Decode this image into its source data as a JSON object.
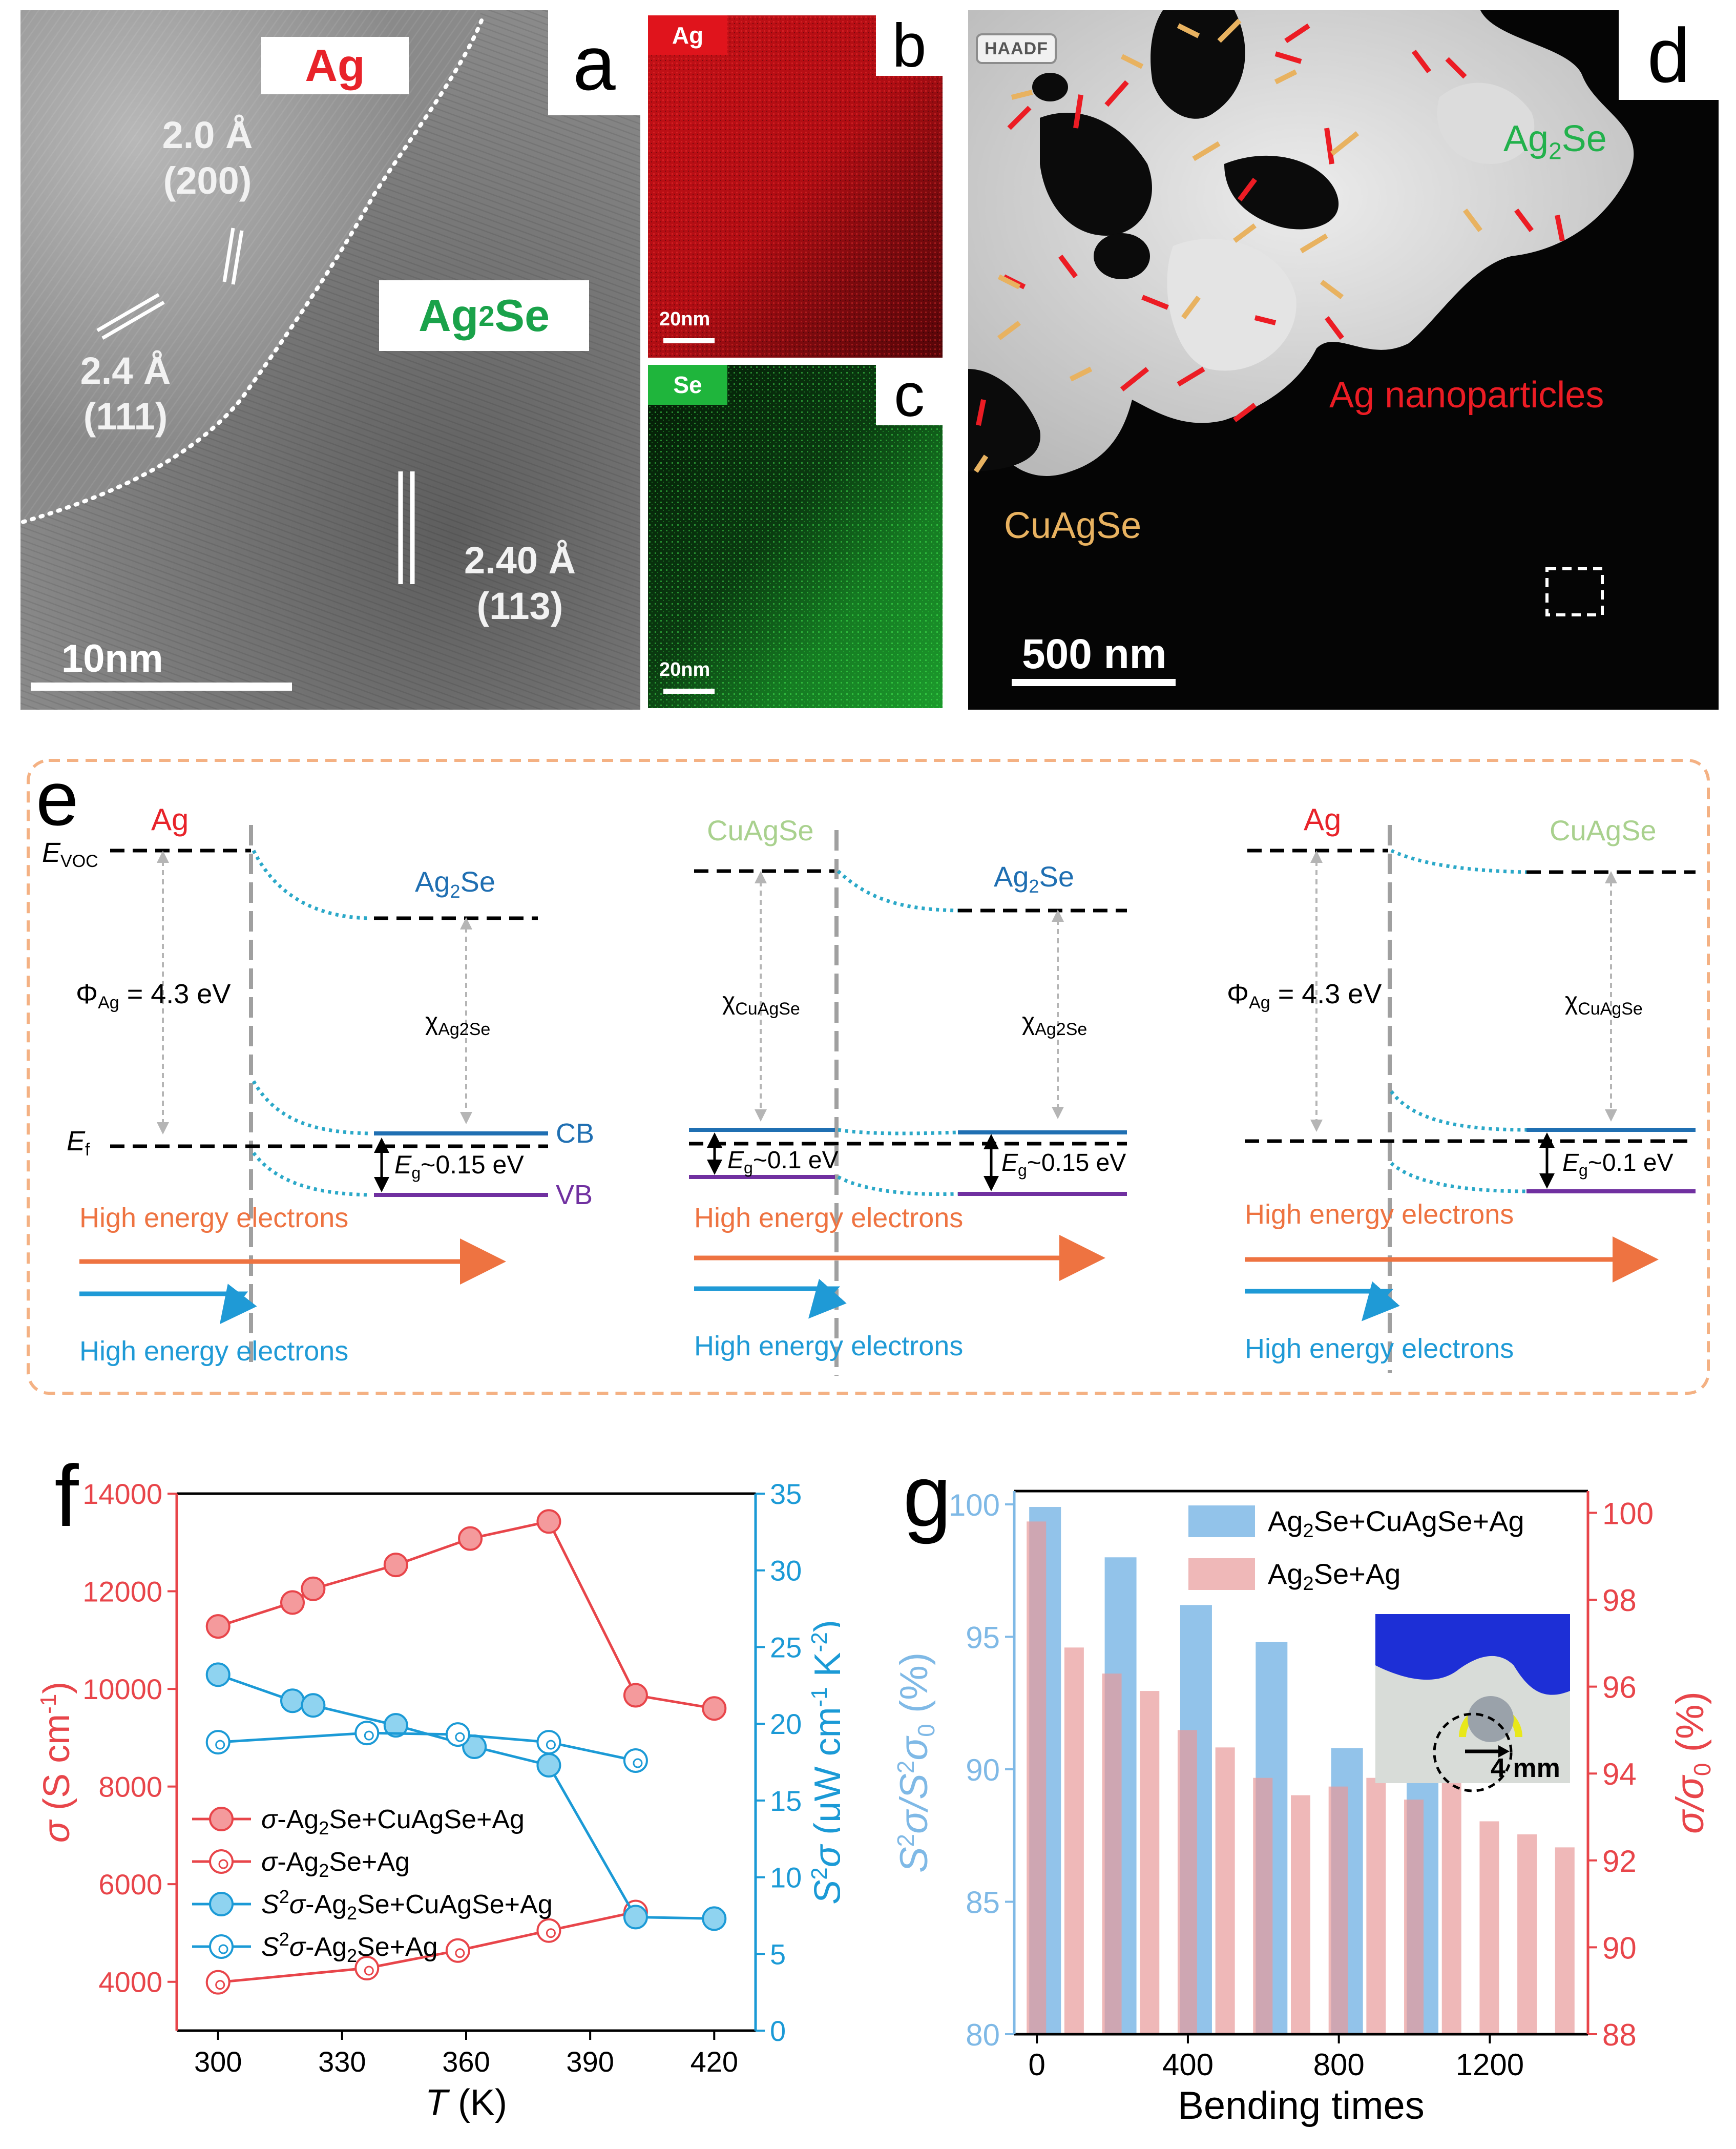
{
  "panel_labels": {
    "a": "a",
    "b": "b",
    "c": "c",
    "d": "d",
    "e": "e",
    "f": "f",
    "g": "g"
  },
  "panel_a": {
    "tag_ag": "Ag",
    "tag_ag2se": "Ag",
    "tag_ag2se_sub": "2",
    "tag_ag2se_end": "Se",
    "lattice_1_d": "2.0 Å",
    "lattice_1_hkl": "(200)",
    "lattice_2_d": "2.4 Å",
    "lattice_2_hkl": "(111)",
    "lattice_3_d": "2.40 Å",
    "lattice_3_hkl": "(113)",
    "scale": "10nm",
    "colors": {
      "ag": "#e8232a",
      "ag2se": "#1aa24a"
    }
  },
  "panel_b": {
    "element": "Ag",
    "scale": "20nm",
    "color": "#e0141c"
  },
  "panel_c": {
    "element": "Se",
    "scale": "20nm",
    "color": "#1fb53c"
  },
  "panel_d": {
    "mode": "HAADF",
    "label_ag2se": "Ag",
    "label_ag2se_sub": "2",
    "label_ag2se_end": "Se",
    "label_ag_np": "Ag nanoparticles",
    "label_cuagse": "CuAgSe",
    "scale": "500 nm",
    "colors": {
      "ag2se": "#22b14c",
      "ag": "#ec1c24",
      "cuagse": "#e8b260"
    }
  },
  "panel_e": {
    "left": {
      "metal": "Ag",
      "evoc_main": "E",
      "evoc_sub": "VOC",
      "phi_main": "Φ",
      "phi_sub": "Ag",
      "phi_val": " = 4.3 eV",
      "semi_main": "Ag",
      "semi_sub": "2",
      "semi_end": "Se",
      "chi_main": "χ",
      "chi_sub": "Ag2Se",
      "ef_main": "E",
      "ef_sub": "f",
      "cb": "CB",
      "vb": "VB",
      "eg_main": "E",
      "eg_sub": "g",
      "eg_val": "~0.15 eV",
      "hee_top": "High energy electrons",
      "hee_bottom": "High energy electrons"
    },
    "middle": {
      "left_mat": "CuAgSe",
      "right_main": "Ag",
      "right_sub": "2",
      "right_end": "Se",
      "chi1_main": "χ",
      "chi1_sub": "CuAgSe",
      "chi2_main": "χ",
      "chi2_sub": "Ag2Se",
      "eg1_main": "E",
      "eg1_sub": "g",
      "eg1_val": "~0.1 eV",
      "eg2_main": "E",
      "eg2_sub": "g",
      "eg2_val": "~0.15 eV",
      "hee_top": "High energy electrons",
      "hee_bottom": "High energy electrons"
    },
    "right": {
      "metal": "Ag",
      "semi": "CuAgSe",
      "phi_main": "Φ",
      "phi_sub": "Ag",
      "phi_val": " = 4.3 eV",
      "chi_main": "χ",
      "chi_sub": "CuAgSe",
      "eg_main": "E",
      "eg_sub": "g",
      "eg_val": "~0.1 eV",
      "hee_top": "High energy electrons",
      "hee_bottom": "High energy electrons"
    },
    "colors": {
      "metal": "#e8232a",
      "cuagse": "#a9d18e",
      "ag2se": "#1f6fb2",
      "cb": "#1f6fb2",
      "vb": "#7030a0",
      "orange": "#ee7341",
      "blue": "#1f9ad6",
      "band_bend": "#2aa8c8",
      "box": "#f4b183"
    }
  },
  "chart_data": [
    {
      "panel": "f",
      "type": "line",
      "xlabel_main": "T",
      "xlabel_unit": " (K)",
      "x_ticks": [
        300,
        330,
        360,
        390,
        420
      ],
      "xlim": [
        290,
        430
      ],
      "y_left": {
        "label_main": "σ",
        "label_unit": " (S cm",
        "label_sup": "-1",
        "label_end": ")",
        "ylim": [
          3000,
          14000
        ],
        "ticks": [
          4000,
          6000,
          8000,
          10000,
          12000,
          14000
        ]
      },
      "y_right": {
        "label_main": "S",
        "label_sup": "2",
        "label_main2": "σ",
        "label_unit": " (μW cm",
        "label_sup2": "-1",
        "label_unit2": " K",
        "label_sup3": "-2",
        "label_end": ")",
        "ylim": [
          0,
          35
        ],
        "ticks": [
          0,
          5,
          10,
          15,
          20,
          25,
          30,
          35
        ]
      },
      "series": [
        {
          "name_main": "σ",
          "name_rest": "-Ag",
          "name_sub": "2",
          "name_end": "Se+CuAgSe+Ag",
          "axis": "left",
          "color": "#e8454a",
          "marker": "filled",
          "x": [
            300,
            318,
            323,
            343,
            361,
            380,
            401,
            420
          ],
          "y": [
            11280,
            11770,
            12050,
            12540,
            13080,
            13430,
            9870,
            9600
          ]
        },
        {
          "name_main": "σ",
          "name_rest": "-Ag",
          "name_sub": "2",
          "name_end": "Se+Ag",
          "axis": "left",
          "color": "#e8454a",
          "marker": "hollow",
          "x": [
            300,
            336,
            358,
            380,
            401
          ],
          "y": [
            3990,
            4280,
            4640,
            5050,
            5430
          ]
        },
        {
          "name_main": "S",
          "name_sup": "2",
          "name_main2": "σ",
          "name_rest": "-Ag",
          "name_sub": "2",
          "name_end": "Se+CuAgSe+Ag",
          "axis": "right",
          "color": "#1b9ad6",
          "marker": "filled",
          "x": [
            300,
            318,
            323,
            343,
            362,
            380,
            401,
            420
          ],
          "y": [
            23.2,
            21.5,
            21.2,
            19.9,
            18.5,
            17.3,
            7.4,
            7.3
          ]
        },
        {
          "name_main": "S",
          "name_sup": "2",
          "name_main2": "σ",
          "name_rest": "-Ag",
          "name_sub": "2",
          "name_end": "Se+Ag",
          "axis": "right",
          "color": "#1b9ad6",
          "marker": "hollow",
          "x": [
            300,
            336,
            358,
            380,
            401
          ],
          "y": [
            18.8,
            19.4,
            19.3,
            18.8,
            17.6
          ]
        }
      ]
    },
    {
      "panel": "g",
      "type": "bar",
      "xlabel": "Bending times",
      "x_ticks": [
        0,
        400,
        800,
        1200
      ],
      "xlim": [
        -60,
        1460
      ],
      "y_left": {
        "label_main": "S",
        "label_sup": "2",
        "label_main2": "σ/S",
        "label_sup2": "2",
        "label_main3": "σ",
        "label_sub": "0",
        "label_end": " (%)",
        "ylim": [
          80,
          100.5
        ],
        "ticks": [
          80,
          85,
          90,
          95,
          100
        ]
      },
      "y_right": {
        "label_main": "σ/σ",
        "label_sub": "0",
        "label_end": " (%)",
        "ylim": [
          88,
          100.5
        ],
        "ticks": [
          88,
          90,
          92,
          94,
          96,
          98,
          100
        ]
      },
      "series": [
        {
          "name_main": "Ag",
          "name_sub": "2",
          "name_end": "Se+CuAgSe+Ag",
          "axis": "left",
          "color": "#7fb9e6",
          "x": [
            0,
            200,
            400,
            600,
            800,
            1000
          ],
          "y": [
            99.9,
            98.0,
            96.2,
            94.8,
            90.8,
            90.4
          ]
        },
        {
          "name_main": "Ag",
          "name_sub": "2",
          "name_end": "Se+Ag",
          "axis": "right",
          "color": "#e89a9a",
          "x": [
            0,
            100,
            200,
            300,
            400,
            500,
            600,
            700,
            800,
            900,
            1000,
            1100,
            1200,
            1300,
            1400
          ],
          "y": [
            99.8,
            96.9,
            96.3,
            95.9,
            95.0,
            94.6,
            93.9,
            93.5,
            93.7,
            93.9,
            93.4,
            93.8,
            92.9,
            92.6,
            92.3
          ]
        }
      ],
      "inset_label": "4 mm"
    }
  ]
}
